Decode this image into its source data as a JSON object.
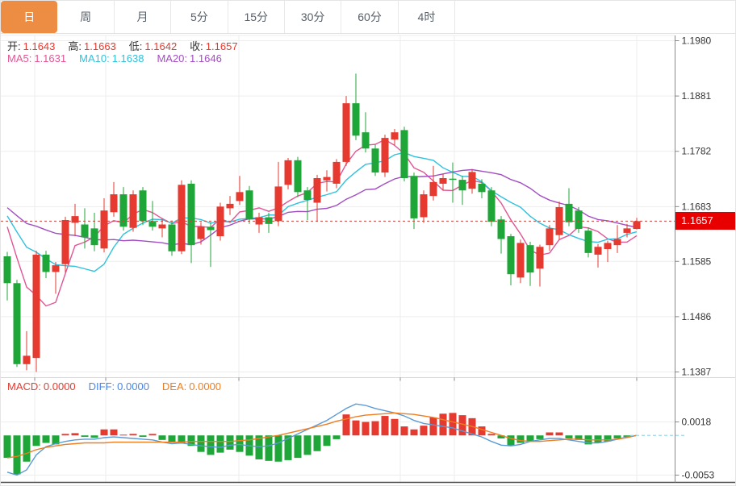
{
  "toolbar": {
    "tabs": [
      {
        "name": "tab-day",
        "label": "日",
        "active": true
      },
      {
        "name": "tab-week",
        "label": "周",
        "active": false
      },
      {
        "name": "tab-month",
        "label": "月",
        "active": false
      },
      {
        "name": "tab-5min",
        "label": "5分",
        "active": false
      },
      {
        "name": "tab-15min",
        "label": "15分",
        "active": false
      },
      {
        "name": "tab-30min",
        "label": "30分",
        "active": false
      },
      {
        "name": "tab-60min",
        "label": "60分",
        "active": false
      },
      {
        "name": "tab-4hour",
        "label": "4时",
        "active": false
      }
    ]
  },
  "info": {
    "ohlc_row": [
      {
        "name": "open-value",
        "label": "开:",
        "value": "1.1643",
        "label_color": "#333333",
        "value_color": "#e6392f"
      },
      {
        "name": "high-value",
        "label": "高:",
        "value": "1.1663",
        "label_color": "#333333",
        "value_color": "#e6392f"
      },
      {
        "name": "low-value",
        "label": "低:",
        "value": "1.1642",
        "label_color": "#333333",
        "value_color": "#e6392f"
      },
      {
        "name": "close-value",
        "label": "收:",
        "value": "1.1657",
        "label_color": "#333333",
        "value_color": "#e6392f"
      }
    ],
    "ma_row": [
      {
        "name": "ma5-value",
        "label": "MA5:",
        "value": "1.1631",
        "label_color": "#e25594",
        "value_color": "#e25594"
      },
      {
        "name": "ma10-value",
        "label": "MA10:",
        "value": "1.1638",
        "label_color": "#2fc1dd",
        "value_color": "#2fc1dd"
      },
      {
        "name": "ma20-value",
        "label": "MA20:",
        "value": "1.1646",
        "label_color": "#a24ec2",
        "value_color": "#a24ec2"
      }
    ],
    "macd_row": [
      {
        "name": "macd-value",
        "label": "MACD:",
        "value": "0.0000",
        "label_color": "#e6392f",
        "value_color": "#e6392f"
      },
      {
        "name": "diff-value",
        "label": "DIFF:",
        "value": "0.0000",
        "label_color": "#4a86e8",
        "value_color": "#4a86e8"
      },
      {
        "name": "dea-value",
        "label": "DEA:",
        "value": "0.0000",
        "label_color": "#ef7d21",
        "value_color": "#ef7d21"
      }
    ]
  },
  "price_axis": {
    "current_label": "1.1657"
  },
  "colors": {
    "up": "#e6392f",
    "down": "#1fa639",
    "ma5": "#e25594",
    "ma10": "#2fc1dd",
    "ma20": "#a24ec2",
    "diff_line": "#5b9bd5",
    "dea_line": "#ef7d21",
    "accent": "#ed8d43",
    "badge": "#e80000",
    "grid": "#ededed",
    "axis": "#8a8a8a",
    "axis_text": "#333333",
    "current_line": "#e6392f",
    "zero_dashed": "#9fd8e8"
  },
  "chart_data": {
    "type": "candlestick",
    "title": "",
    "legend_position": "top-left",
    "grid": true,
    "price_pane": {
      "y_ticks": [
        1.198,
        1.1881,
        1.1782,
        1.1683,
        1.1585,
        1.1486,
        1.1387
      ],
      "current_price": 1.1657,
      "ma_periods": [
        5,
        10,
        20
      ],
      "ma_warmup_closes_estimated": [
        1.169,
        1.1692,
        1.1694,
        1.1696,
        1.1698,
        1.17,
        1.17,
        1.1698,
        1.1696,
        1.1694,
        1.1692,
        1.169,
        1.1688,
        1.1686,
        1.1684,
        1.1682,
        1.168,
        1.1676,
        1.1672,
        1.166
      ],
      "candles_ohlc": [
        [
          1.1594,
          1.1602,
          1.1515,
          1.1546
        ],
        [
          1.1546,
          1.1552,
          1.1396,
          1.1401
        ],
        [
          1.1401,
          1.146,
          1.139,
          1.1416
        ],
        [
          1.1412,
          1.1604,
          1.1387,
          1.1597
        ],
        [
          1.1597,
          1.1604,
          1.1555,
          1.1566
        ],
        [
          1.1566,
          1.1584,
          1.1527,
          1.1578
        ],
        [
          1.158,
          1.1665,
          1.1565,
          1.1659
        ],
        [
          1.1654,
          1.1688,
          1.163,
          1.1666
        ],
        [
          1.1651,
          1.168,
          1.1608,
          1.1628
        ],
        [
          1.1644,
          1.1672,
          1.1603,
          1.1614
        ],
        [
          1.1608,
          1.1698,
          1.1601,
          1.1676
        ],
        [
          1.1673,
          1.1727,
          1.1665,
          1.1705
        ],
        [
          1.1705,
          1.1718,
          1.164,
          1.1647
        ],
        [
          1.1645,
          1.1712,
          1.1638,
          1.1705
        ],
        [
          1.1712,
          1.1718,
          1.165,
          1.1657
        ],
        [
          1.1657,
          1.1693,
          1.164,
          1.1647
        ],
        [
          1.1644,
          1.1662,
          1.1628,
          1.1651
        ],
        [
          1.1651,
          1.1658,
          1.1595,
          1.1603
        ],
        [
          1.1603,
          1.173,
          1.1598,
          1.1722
        ],
        [
          1.1724,
          1.173,
          1.1582,
          1.1614
        ],
        [
          1.1625,
          1.1655,
          1.1615,
          1.1647
        ],
        [
          1.1647,
          1.1655,
          1.1575,
          1.1641
        ],
        [
          1.163,
          1.169,
          1.1622,
          1.1683
        ],
        [
          1.168,
          1.1702,
          1.1668,
          1.1688
        ],
        [
          1.1693,
          1.1738,
          1.1686,
          1.1709
        ],
        [
          1.1712,
          1.172,
          1.1652,
          1.166
        ],
        [
          1.1651,
          1.1672,
          1.1636,
          1.1664
        ],
        [
          1.1664,
          1.1672,
          1.1636,
          1.1652
        ],
        [
          1.1657,
          1.1763,
          1.1648,
          1.1719
        ],
        [
          1.1722,
          1.177,
          1.1714,
          1.1766
        ],
        [
          1.1766,
          1.1772,
          1.17,
          1.1709
        ],
        [
          1.1712,
          1.1718,
          1.1659,
          1.1695
        ],
        [
          1.169,
          1.174,
          1.1656,
          1.1734
        ],
        [
          1.173,
          1.1748,
          1.171,
          1.1736
        ],
        [
          1.1724,
          1.1768,
          1.1716,
          1.1763
        ],
        [
          1.1763,
          1.1881,
          1.1756,
          1.1868
        ],
        [
          1.1868,
          1.1921,
          1.1802,
          1.181
        ],
        [
          1.1816,
          1.1852,
          1.178,
          1.1787
        ],
        [
          1.1787,
          1.1794,
          1.1738,
          1.1744
        ],
        [
          1.1744,
          1.1812,
          1.1736,
          1.1806
        ],
        [
          1.1803,
          1.1822,
          1.1793,
          1.1816
        ],
        [
          1.182,
          1.1826,
          1.1728,
          1.1734
        ],
        [
          1.1738,
          1.1744,
          1.1643,
          1.1662
        ],
        [
          1.1664,
          1.1712,
          1.1654,
          1.1705
        ],
        [
          1.1702,
          1.1756,
          1.1694,
          1.1727
        ],
        [
          1.1724,
          1.1742,
          1.1712,
          1.1734
        ],
        [
          1.1733,
          1.1762,
          1.169,
          1.1731
        ],
        [
          1.1731,
          1.1738,
          1.1686,
          1.1712
        ],
        [
          1.1715,
          1.175,
          1.1706,
          1.1745
        ],
        [
          1.1724,
          1.1732,
          1.1698,
          1.1709
        ],
        [
          1.1712,
          1.1718,
          1.1648,
          1.1656
        ],
        [
          1.166,
          1.1666,
          1.1599,
          1.1625
        ],
        [
          1.163,
          1.1634,
          1.1542,
          1.1562
        ],
        [
          1.1556,
          1.1624,
          1.1546,
          1.1618
        ],
        [
          1.1614,
          1.162,
          1.1541,
          1.1565
        ],
        [
          1.1572,
          1.1615,
          1.154,
          1.1611
        ],
        [
          1.1614,
          1.165,
          1.1604,
          1.1644
        ],
        [
          1.1632,
          1.1692,
          1.1624,
          1.1682
        ],
        [
          1.1688,
          1.1716,
          1.1648,
          1.1655
        ],
        [
          1.1676,
          1.1682,
          1.1636,
          1.1643
        ],
        [
          1.164,
          1.1646,
          1.1592,
          1.16
        ],
        [
          1.1597,
          1.1616,
          1.1574,
          1.1611
        ],
        [
          1.1607,
          1.1622,
          1.1584,
          1.1618
        ],
        [
          1.1614,
          1.165,
          1.16,
          1.1625
        ],
        [
          1.1636,
          1.1652,
          1.1628,
          1.1644
        ],
        [
          1.1643,
          1.1663,
          1.1642,
          1.1657
        ]
      ]
    },
    "macd_pane": {
      "y_ticks": [
        0.0018,
        -0.0053
      ],
      "macd_hist": [
        -0.003,
        -0.0052,
        -0.0035,
        -0.0014,
        -0.001,
        -0.0012,
        0.0002,
        0.0003,
        -0.0002,
        -0.0003,
        0.0008,
        0.0008,
        0.0001,
        0.0002,
        -0.0002,
        0.0002,
        -0.0006,
        -0.0009,
        -0.0011,
        -0.0014,
        -0.0022,
        -0.0026,
        -0.0023,
        -0.0019,
        -0.0022,
        -0.0027,
        -0.0032,
        -0.0034,
        -0.0035,
        -0.0033,
        -0.003,
        -0.0026,
        -0.0021,
        -0.0014,
        -0.0005,
        0.0028,
        0.002,
        0.0018,
        0.0019,
        0.0026,
        0.0022,
        0.0012,
        0.0008,
        0.0013,
        0.0024,
        0.0029,
        0.003,
        0.0027,
        0.0023,
        0.0012,
        0.0002,
        -0.0004,
        -0.0014,
        -0.001,
        -0.0008,
        -0.0005,
        0.0004,
        0.0004,
        -0.0004,
        -0.0006,
        -0.0012,
        -0.001,
        -0.0008,
        -0.0004,
        -0.0002,
        0.0
      ],
      "diff": [
        -0.0049,
        -0.0053,
        -0.0046,
        -0.0026,
        -0.0015,
        -0.0011,
        -0.0008,
        -0.0006,
        -0.0005,
        -0.0005,
        -0.0003,
        -0.0002,
        -0.0003,
        -0.0004,
        -0.0005,
        -0.0006,
        -0.0009,
        -0.0011,
        -0.001,
        -0.0012,
        -0.0014,
        -0.0015,
        -0.0016,
        -0.0013,
        -0.0012,
        -0.0014,
        -0.0015,
        -0.0014,
        -0.001,
        -0.0004,
        0.0002,
        0.0008,
        0.0014,
        0.002,
        0.0028,
        0.0036,
        0.0042,
        0.004,
        0.0036,
        0.0033,
        0.003,
        0.0026,
        0.002,
        0.0016,
        0.0014,
        0.0012,
        0.001,
        0.0006,
        0.0002,
        -0.0002,
        -0.0008,
        -0.0013,
        -0.0014,
        -0.0012,
        -0.0008,
        -0.0006,
        -0.0004,
        -0.0004,
        -0.0006,
        -0.0008,
        -0.001,
        -0.001,
        -0.0008,
        -0.0005,
        -0.0002,
        0.0
      ],
      "dea": [
        -0.003,
        -0.0028,
        -0.0024,
        -0.0019,
        -0.0016,
        -0.0014,
        -0.0012,
        -0.0011,
        -0.001,
        -0.001,
        -0.001,
        -0.0009,
        -0.0009,
        -0.0009,
        -0.0009,
        -0.0009,
        -0.0009,
        -0.0009,
        -0.0009,
        -0.0008,
        -0.0008,
        -0.0008,
        -0.0008,
        -0.0008,
        -0.0007,
        -0.0006,
        -0.0004,
        -0.0002,
        0.0,
        0.0003,
        0.0006,
        0.0009,
        0.0012,
        0.0015,
        0.0019,
        0.0022,
        0.0025,
        0.0027,
        0.0028,
        0.0029,
        0.003,
        0.0029,
        0.0028,
        0.0026,
        0.0024,
        0.0021,
        0.0018,
        0.0015,
        0.0012,
        0.0008,
        0.0004,
        0.0,
        -0.0004,
        -0.0007,
        -0.0008,
        -0.0008,
        -0.0007,
        -0.0006,
        -0.0005,
        -0.0005,
        -0.0006,
        -0.0006,
        -0.0006,
        -0.0005,
        -0.0003,
        0.0
      ]
    }
  }
}
